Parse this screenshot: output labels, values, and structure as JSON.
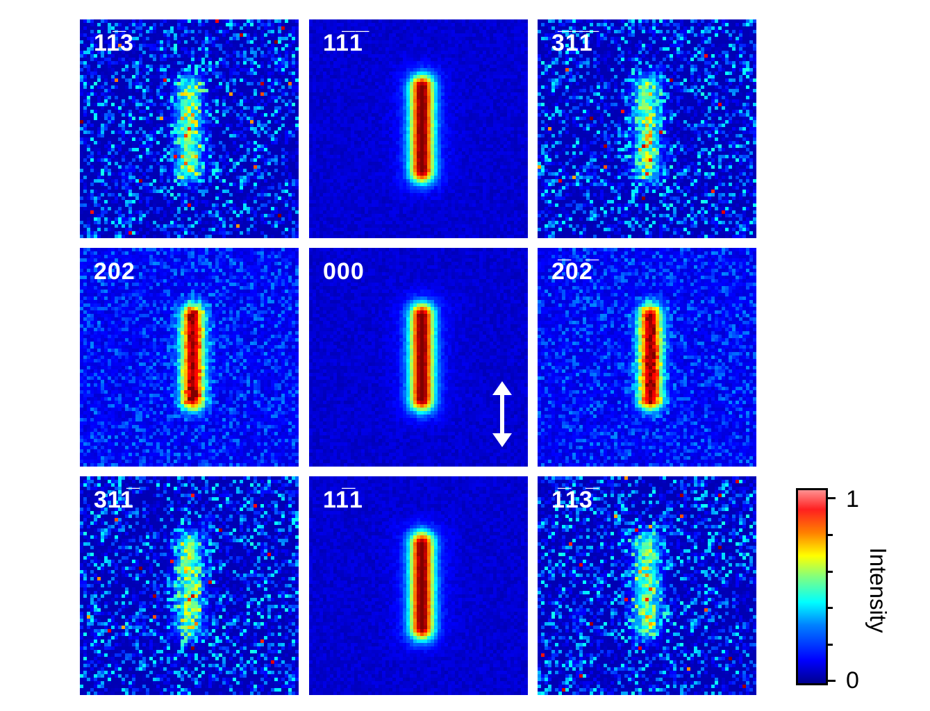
{
  "panels": [
    {
      "label": "11̅3",
      "kind": "weak"
    },
    {
      "label": "11̅1̅",
      "kind": "strong"
    },
    {
      "label": "3̅1̅1̅",
      "kind": "weak"
    },
    {
      "label": "202",
      "kind": "mid"
    },
    {
      "label": "000",
      "kind": "strong"
    },
    {
      "label": "2̅02̅",
      "kind": "mid"
    },
    {
      "label": "311̅",
      "kind": "weak"
    },
    {
      "label": "11̅1",
      "kind": "strong"
    },
    {
      "label": "1̅13̅",
      "kind": "weak"
    }
  ],
  "colorbar": {
    "max_label": "1",
    "min_label": "0",
    "title": "Intensity",
    "colormap": "jet"
  },
  "arrow_icon": "double-vertical-arrow-icon"
}
